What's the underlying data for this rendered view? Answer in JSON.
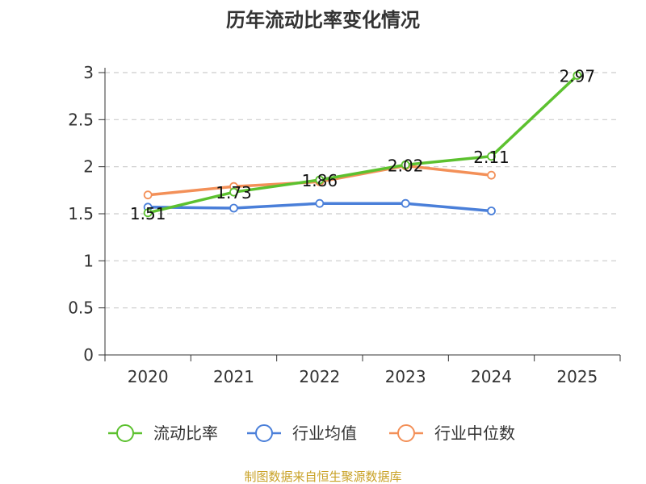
{
  "chart_data": {
    "type": "line",
    "title": "历年流动比率变化情况",
    "categories": [
      "2020",
      "2021",
      "2022",
      "2023",
      "2024",
      "2025"
    ],
    "ylim": [
      0,
      3
    ],
    "yticks": [
      0,
      0.5,
      1,
      1.5,
      2,
      2.5,
      3
    ],
    "ytick_labels": [
      "0",
      "0.5",
      "1",
      "1.5",
      "2",
      "2.5",
      "3"
    ],
    "grid": true,
    "legend_position": "bottom",
    "series": [
      {
        "name": "流动比率",
        "color": "#5cc12f",
        "values": [
          1.51,
          1.73,
          1.86,
          2.02,
          2.11,
          2.97
        ],
        "labels": [
          "1.51",
          "1.73",
          "1.86",
          "2.02",
          "2.11",
          "2.97"
        ]
      },
      {
        "name": "行业均值",
        "color": "#4a7fd9",
        "values": [
          1.57,
          1.56,
          1.61,
          1.61,
          1.53,
          null
        ]
      },
      {
        "name": "行业中位数",
        "color": "#f39058",
        "values": [
          1.7,
          1.79,
          1.84,
          2.01,
          1.91,
          null
        ]
      }
    ]
  },
  "source_text": "制图数据来自恒生聚源数据库"
}
